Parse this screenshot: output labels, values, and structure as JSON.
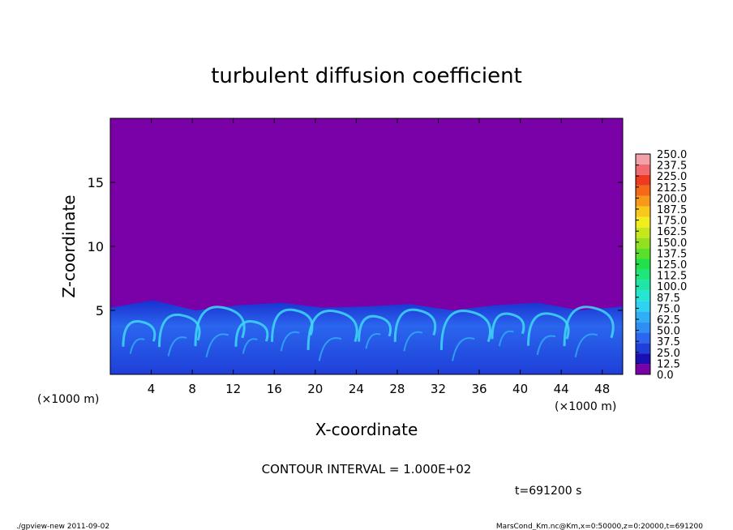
{
  "chart_data": {
    "type": "heatmap",
    "title": "turbulent diffusion coefficient",
    "xlabel": "X-coordinate",
    "ylabel": "Z-coordinate",
    "x_unit": "(×1000 m)",
    "y_unit": "(×1000 m)",
    "xlim": [
      0,
      50
    ],
    "ylim": [
      0,
      20
    ],
    "x_ticks": [
      4,
      8,
      12,
      16,
      20,
      24,
      28,
      32,
      36,
      40,
      44,
      48
    ],
    "y_ticks": [
      5,
      10,
      15
    ],
    "color_levels": [
      0.0,
      12.5,
      25.0,
      37.5,
      50.0,
      62.5,
      75.0,
      87.5,
      100.0,
      112.5,
      125.0,
      137.5,
      150.0,
      162.5,
      175.0,
      187.5,
      200.0,
      212.5,
      225.0,
      237.5,
      250.0
    ],
    "color_levels_labels": [
      "0.0",
      "12.5",
      "25.0",
      "37.5",
      "50.0",
      "62.5",
      "75.0",
      "87.5",
      "100.0",
      "112.5",
      "125.0",
      "137.5",
      "150.0",
      "162.5",
      "175.0",
      "187.5",
      "200.0",
      "212.5",
      "225.0",
      "237.5",
      "250.0"
    ],
    "colors": [
      "#7a00a8",
      "#1a0fb4",
      "#1f3fd8",
      "#2a66ee",
      "#2f8ef4",
      "#2fb0f6",
      "#2fd2f0",
      "#25e6d2",
      "#1fe6a8",
      "#1fe67a",
      "#22e04a",
      "#5ae02a",
      "#94e020",
      "#c8e61e",
      "#f2ee1e",
      "#f8c81a",
      "#f89a18",
      "#f46a16",
      "#ee3a20",
      "#f06a70",
      "#f4a0a8"
    ],
    "mixed_layer_top": [
      5.2,
      5.8,
      5.0,
      5.4,
      5.6,
      5.2,
      5.3,
      5.5,
      5.0,
      5.4,
      5.6,
      5.0,
      5.3
    ],
    "annotation": "CONTOUR INTERVAL = 1.000E+02",
    "time_label": "t=691200 s"
  },
  "footer": {
    "left": "./gpview-new  2011-09-02",
    "right": "MarsCond_Km.nc@Km,x=0:50000,z=0:20000,t=691200"
  }
}
